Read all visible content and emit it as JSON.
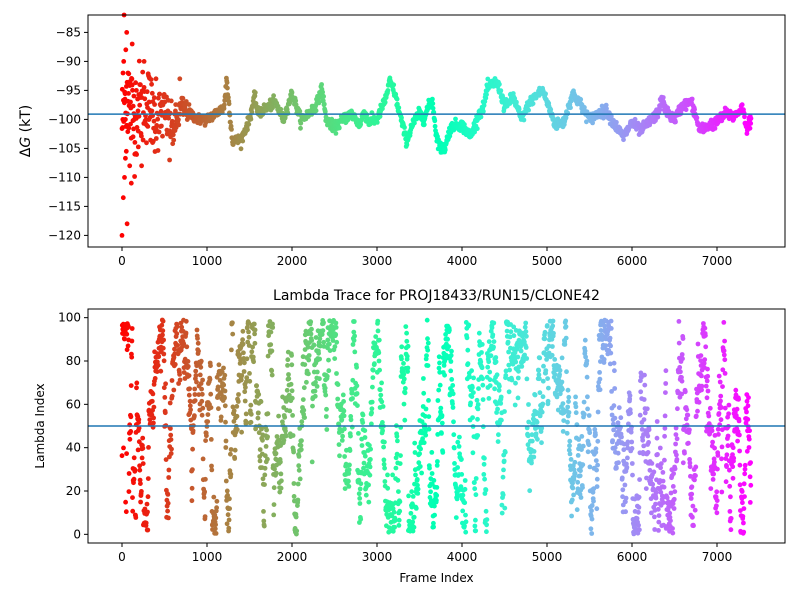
{
  "chart_data": [
    {
      "type": "scatter",
      "title": "",
      "xlabel": "",
      "ylabel": "ΔG (kT)",
      "ylabel_parts": {
        "delta": "Δ",
        "var": "G",
        "unit": " (kT)"
      },
      "xlim": [
        -400,
        7800
      ],
      "ylim": [
        -122,
        -82
      ],
      "xticks": [
        0,
        1000,
        2000,
        3000,
        4000,
        5000,
        6000,
        7000
      ],
      "xtick_labels": [
        "0",
        "1000",
        "2000",
        "3000",
        "4000",
        "5000",
        "6000",
        "7000"
      ],
      "yticks": [
        -120,
        -115,
        -110,
        -105,
        -100,
        -95,
        -90,
        -85
      ],
      "ytick_labels": [
        "−120",
        "−115",
        "−110",
        "−105",
        "−100",
        "−95",
        "−90",
        "−85"
      ],
      "hline": -99.1,
      "hline_color": "#1f77b4",
      "colormap": "rainbow (reversed: frame 0 = red, last frame = violet)",
      "grid": false,
      "trace_keypoints": [
        [
          0,
          -100
        ],
        [
          60,
          -95
        ],
        [
          120,
          -99
        ],
        [
          200,
          -98
        ],
        [
          300,
          -97
        ],
        [
          400,
          -100
        ],
        [
          500,
          -99
        ],
        [
          600,
          -102
        ],
        [
          700,
          -98
        ],
        [
          800,
          -99
        ],
        [
          900,
          -100
        ],
        [
          1000,
          -100
        ],
        [
          1100,
          -99
        ],
        [
          1200,
          -98
        ],
        [
          1230,
          -93
        ],
        [
          1300,
          -103.8
        ],
        [
          1400,
          -103.5
        ],
        [
          1500,
          -100
        ],
        [
          1560,
          -96
        ],
        [
          1600,
          -99
        ],
        [
          1700,
          -98
        ],
        [
          1800,
          -97
        ],
        [
          1900,
          -100
        ],
        [
          2000,
          -95.5
        ],
        [
          2100,
          -100
        ],
        [
          2200,
          -99
        ],
        [
          2300,
          -97
        ],
        [
          2350,
          -94.5
        ],
        [
          2400,
          -100
        ],
        [
          2500,
          -101.5
        ],
        [
          2600,
          -100
        ],
        [
          2700,
          -99
        ],
        [
          2800,
          -101
        ],
        [
          2850,
          -98.5
        ],
        [
          2900,
          -100.5
        ],
        [
          3000,
          -100
        ],
        [
          3100,
          -96.5
        ],
        [
          3150,
          -93.5
        ],
        [
          3200,
          -95
        ],
        [
          3250,
          -98
        ],
        [
          3300,
          -101
        ],
        [
          3350,
          -103.8
        ],
        [
          3400,
          -101.5
        ],
        [
          3450,
          -100
        ],
        [
          3500,
          -99
        ],
        [
          3550,
          -100
        ],
        [
          3600,
          -98
        ],
        [
          3650,
          -96.5
        ],
        [
          3700,
          -103
        ],
        [
          3750,
          -105
        ],
        [
          3800,
          -105
        ],
        [
          3850,
          -102
        ],
        [
          3900,
          -101
        ],
        [
          4000,
          -101
        ],
        [
          4100,
          -103
        ],
        [
          4200,
          -99
        ],
        [
          4250,
          -98
        ],
        [
          4300,
          -94.5
        ],
        [
          4350,
          -94
        ],
        [
          4400,
          -93.5
        ],
        [
          4450,
          -95
        ],
        [
          4500,
          -98
        ],
        [
          4600,
          -96
        ],
        [
          4700,
          -100
        ],
        [
          4800,
          -97
        ],
        [
          4900,
          -95.5
        ],
        [
          4950,
          -95
        ],
        [
          5000,
          -97
        ],
        [
          5100,
          -101
        ],
        [
          5200,
          -100.5
        ],
        [
          5300,
          -95.5
        ],
        [
          5400,
          -97.5
        ],
        [
          5500,
          -100
        ],
        [
          5600,
          -99
        ],
        [
          5700,
          -98.5
        ],
        [
          5800,
          -101
        ],
        [
          5900,
          -103
        ],
        [
          6000,
          -100.5
        ],
        [
          6100,
          -102
        ],
        [
          6200,
          -100.5
        ],
        [
          6300,
          -99
        ],
        [
          6350,
          -96.5
        ],
        [
          6400,
          -98.5
        ],
        [
          6500,
          -100
        ],
        [
          6600,
          -97.5
        ],
        [
          6700,
          -97
        ],
        [
          6800,
          -102
        ],
        [
          6900,
          -101
        ],
        [
          7000,
          -100.5
        ],
        [
          7100,
          -99
        ],
        [
          7200,
          -99.5
        ],
        [
          7300,
          -98
        ],
        [
          7350,
          -101.5
        ],
        [
          7400,
          -100
        ]
      ],
      "early_scatter": {
        "x": [
          0,
          10,
          15,
          20,
          25,
          30,
          35,
          40,
          45,
          50,
          55,
          60,
          70,
          80,
          90,
          100,
          110,
          120,
          130,
          140,
          150,
          170,
          190,
          210,
          230,
          260,
          290,
          320,
          360,
          400,
          450,
          500,
          560,
          620,
          680
        ],
        "y": [
          -120,
          -100,
          -113.5,
          -90,
          -82,
          -110,
          -96.5,
          -100,
          -88,
          -105.5,
          -85,
          -118,
          -92,
          -101.5,
          -108,
          -97,
          -111,
          -87,
          -103,
          -99,
          -106,
          -95,
          -102,
          -94,
          -108,
          -90,
          -101,
          -97,
          -104,
          -93,
          -99,
          -96,
          -107,
          -101,
          -93
        ]
      }
    },
    {
      "type": "scatter",
      "title": "Lambda Trace for PROJ18433/RUN15/CLONE42",
      "xlabel": "Frame Index",
      "ylabel": "Lambda Index",
      "xlim": [
        -400,
        7800
      ],
      "ylim": [
        -4,
        104
      ],
      "xticks": [
        0,
        1000,
        2000,
        3000,
        4000,
        5000,
        6000,
        7000
      ],
      "xtick_labels": [
        "0",
        "1000",
        "2000",
        "3000",
        "4000",
        "5000",
        "6000",
        "7000"
      ],
      "yticks": [
        0,
        20,
        40,
        60,
        80,
        100
      ],
      "ytick_labels": [
        "0",
        "20",
        "40",
        "60",
        "80",
        "100"
      ],
      "hline": 50,
      "hline_color": "#1f77b4",
      "colormap": "rainbow (reversed: frame 0 = red, last frame = violet)",
      "grid": false,
      "lambda_range": [
        0,
        99
      ],
      "frame_range": [
        0,
        7400
      ]
    }
  ]
}
